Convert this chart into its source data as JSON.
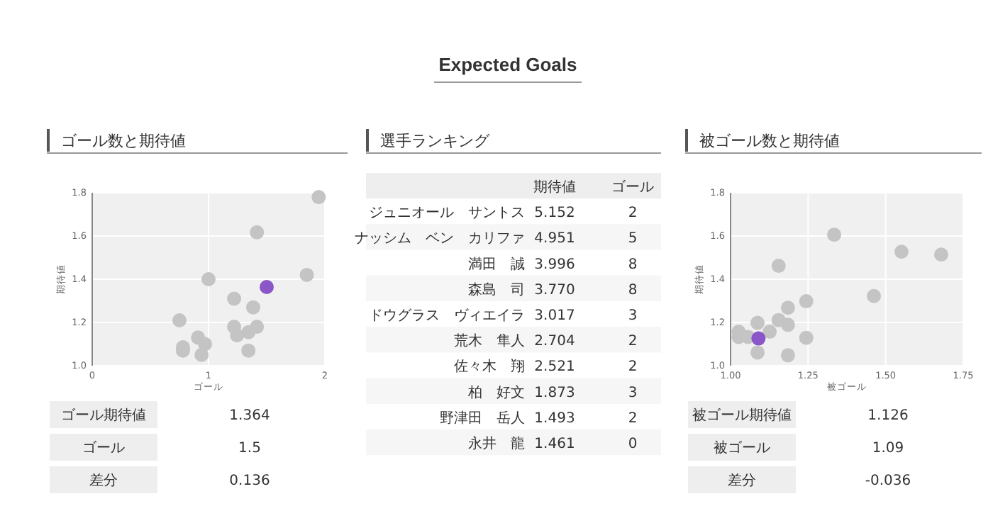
{
  "chart_data": [
    {
      "type": "other",
      "title": "Expected Goals"
    },
    {
      "type": "scatter",
      "title": "ゴール数と期待値",
      "xlabel": "ゴール",
      "ylabel": "期待値",
      "xlim": [
        0,
        2
      ],
      "xticks": [
        0,
        1,
        2
      ],
      "ylim": [
        1,
        1.8
      ],
      "yticks": [
        {
          "value": 1,
          "label": "1.0"
        },
        1.2,
        1.4,
        1.6,
        1.8
      ],
      "grid": true,
      "marker": "circle",
      "series": [
        {
          "color": "#c4c4c4",
          "x": [
            1.947,
            1.416,
            1.0,
            1.845,
            1.22,
            1.384,
            0.75,
            1.22,
            1.416,
            1.343,
            1.245,
            0.91,
            0.97,
            0.78,
            0.78,
            1.343,
            0.94
          ],
          "values": [
            1.78,
            1.617,
            1.4,
            1.42,
            1.31,
            1.27,
            1.21,
            1.18,
            1.18,
            1.155,
            1.14,
            1.13,
            1.1,
            1.085,
            1.07,
            1.07,
            1.05
          ]
        },
        {
          "color": "#8a56c8",
          "x": [
            1.5
          ],
          "values": [
            1.364
          ]
        }
      ]
    },
    {
      "type": "other",
      "categories": [
        "ゴール期待値",
        "ゴール",
        "差分"
      ],
      "values": [
        1.364,
        1.5,
        0.136
      ],
      "data_labels": true
    },
    {
      "type": "other",
      "title": "選手ランキング",
      "categories": [
        "ジュニオール　サントス",
        "ナッシム　ベン　カリファ",
        "満田　誠",
        "森島　司",
        "ドウグラス　ヴィエイラ",
        "荒木　隼人",
        "佐々木　翔",
        "柏　好文",
        "野津田　岳人",
        "永井　龍"
      ],
      "data_labels": true,
      "series": [
        {
          "name": "期待値",
          "values": [
            5.152,
            4.951,
            3.996,
            3.77,
            3.017,
            2.704,
            2.521,
            1.873,
            1.493,
            1.461
          ],
          "value_labels": [
            "5.152",
            "4.951",
            "3.996",
            "3.770",
            "3.017",
            "2.704",
            "2.521",
            "1.873",
            "1.493",
            "1.461"
          ]
        },
        {
          "name": "ゴール",
          "values": [
            2,
            5,
            8,
            8,
            3,
            2,
            2,
            3,
            2,
            0
          ]
        }
      ]
    },
    {
      "type": "scatter",
      "title": "被ゴール数と期待値",
      "xlabel": "被ゴール",
      "ylabel": "期待値",
      "xlim": [
        1,
        1.75
      ],
      "xticks": [
        {
          "value": 1,
          "label": "1.00"
        },
        1.25,
        {
          "value": 1.5,
          "label": "1.50"
        },
        1.75
      ],
      "ylim": [
        1,
        1.8
      ],
      "yticks": [
        {
          "value": 1,
          "label": "1.0"
        },
        1.2,
        1.4,
        1.6,
        1.8
      ],
      "grid": true,
      "marker": "circle",
      "series": [
        {
          "color": "#c4c4c4",
          "x": [
            1.334,
            1.551,
            1.679,
            1.155,
            1.462,
            1.244,
            1.185,
            1.155,
            1.087,
            1.185,
            1.126,
            1.026,
            1.026,
            1.056,
            1.244,
            1.087,
            1.185
          ],
          "values": [
            1.606,
            1.527,
            1.514,
            1.462,
            1.322,
            1.298,
            1.268,
            1.211,
            1.198,
            1.189,
            1.157,
            1.157,
            1.133,
            1.133,
            1.129,
            1.061,
            1.048
          ]
        },
        {
          "color": "#8a56c8",
          "x": [
            1.09
          ],
          "values": [
            1.126
          ]
        }
      ]
    },
    {
      "type": "other",
      "categories": [
        "被ゴール期待値",
        "被ゴール",
        "差分"
      ],
      "values": [
        1.126,
        1.09,
        -0.036
      ],
      "data_labels": true
    }
  ]
}
